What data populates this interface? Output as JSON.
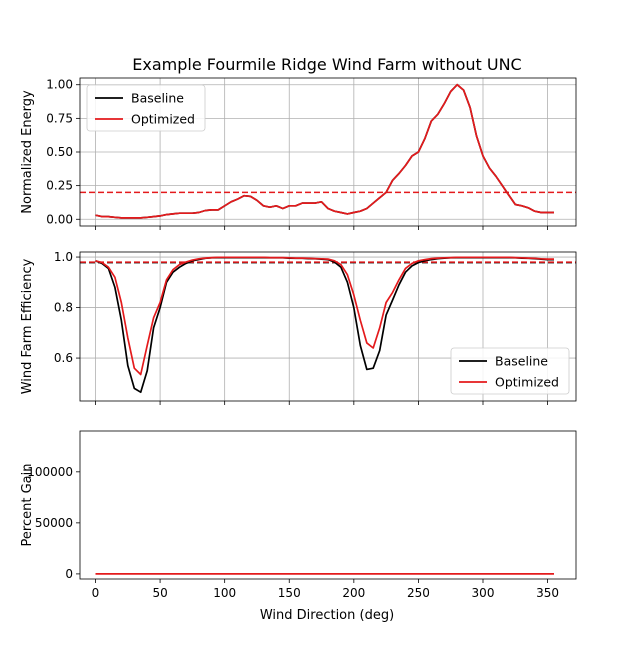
{
  "figure": {
    "title": "Example Fourmile Ridge Wind Farm without UNC",
    "xlabel": "Wind Direction (deg)"
  },
  "chart_data": [
    {
      "type": "line",
      "ylabel": "Normalized Energy",
      "xlim": [
        -12,
        372
      ],
      "ylim": [
        -0.05,
        1.05
      ],
      "xticks": [
        0,
        50,
        100,
        150,
        200,
        250,
        300,
        350
      ],
      "yticks": [
        0.0,
        0.25,
        0.5,
        0.75,
        1.0
      ],
      "ytick_labels": [
        "0.00",
        "0.25",
        "0.50",
        "0.75",
        "1.00"
      ],
      "grid": true,
      "show_xticklabels": false,
      "legend": {
        "position": "top-left",
        "entries": [
          "Baseline",
          "Optimized"
        ]
      },
      "hlines": [
        {
          "y": 0.2,
          "color": "#e41a1c",
          "style": "dashed"
        }
      ],
      "x": [
        0,
        5,
        10,
        15,
        20,
        25,
        30,
        35,
        40,
        45,
        50,
        55,
        60,
        65,
        70,
        75,
        80,
        85,
        90,
        95,
        100,
        105,
        110,
        115,
        120,
        125,
        130,
        135,
        140,
        145,
        150,
        155,
        160,
        165,
        170,
        175,
        180,
        185,
        190,
        195,
        200,
        205,
        210,
        215,
        220,
        225,
        230,
        235,
        240,
        245,
        250,
        255,
        260,
        265,
        270,
        275,
        280,
        285,
        290,
        295,
        300,
        305,
        310,
        315,
        320,
        325,
        330,
        335,
        340,
        345,
        350,
        355
      ],
      "series": [
        {
          "name": "Baseline",
          "color": "#000000",
          "values": [
            0.03,
            0.02,
            0.02,
            0.015,
            0.01,
            0.01,
            0.01,
            0.01,
            0.015,
            0.02,
            0.025,
            0.035,
            0.04,
            0.045,
            0.045,
            0.045,
            0.05,
            0.065,
            0.07,
            0.07,
            0.1,
            0.13,
            0.15,
            0.175,
            0.17,
            0.14,
            0.1,
            0.09,
            0.1,
            0.08,
            0.1,
            0.1,
            0.12,
            0.12,
            0.12,
            0.13,
            0.08,
            0.06,
            0.05,
            0.04,
            0.05,
            0.06,
            0.08,
            0.12,
            0.16,
            0.2,
            0.29,
            0.34,
            0.4,
            0.47,
            0.5,
            0.6,
            0.73,
            0.78,
            0.86,
            0.95,
            1.0,
            0.96,
            0.83,
            0.62,
            0.47,
            0.38,
            0.32,
            0.25,
            0.18,
            0.11,
            0.1,
            0.085,
            0.06,
            0.05,
            0.05,
            0.05
          ]
        },
        {
          "name": "Optimized",
          "color": "#e41a1c",
          "values": [
            0.03,
            0.02,
            0.02,
            0.015,
            0.01,
            0.01,
            0.01,
            0.01,
            0.015,
            0.02,
            0.025,
            0.035,
            0.04,
            0.045,
            0.045,
            0.045,
            0.05,
            0.065,
            0.07,
            0.07,
            0.1,
            0.13,
            0.15,
            0.175,
            0.17,
            0.14,
            0.1,
            0.09,
            0.1,
            0.08,
            0.1,
            0.1,
            0.12,
            0.12,
            0.12,
            0.13,
            0.08,
            0.06,
            0.05,
            0.04,
            0.05,
            0.06,
            0.08,
            0.12,
            0.16,
            0.2,
            0.29,
            0.34,
            0.4,
            0.47,
            0.5,
            0.6,
            0.73,
            0.78,
            0.86,
            0.95,
            1.0,
            0.96,
            0.83,
            0.62,
            0.47,
            0.38,
            0.32,
            0.25,
            0.18,
            0.11,
            0.1,
            0.085,
            0.06,
            0.05,
            0.05,
            0.05
          ]
        }
      ]
    },
    {
      "type": "line",
      "ylabel": "Wind Farm Efficiency",
      "xlim": [
        -12,
        372
      ],
      "ylim": [
        0.43,
        1.02
      ],
      "xticks": [
        0,
        50,
        100,
        150,
        200,
        250,
        300,
        350
      ],
      "yticks": [
        0.6,
        0.8,
        1.0
      ],
      "ytick_labels": [
        "0.6",
        "0.8",
        "1.0"
      ],
      "grid": true,
      "show_xticklabels": false,
      "legend": {
        "position": "bottom-right",
        "entries": [
          "Baseline",
          "Optimized"
        ]
      },
      "hlines": [
        {
          "y": 0.978,
          "color": "#000000",
          "style": "dashed"
        },
        {
          "y": 0.98,
          "color": "#e41a1c",
          "style": "dashed"
        }
      ],
      "x": [
        0,
        5,
        10,
        15,
        20,
        25,
        30,
        35,
        40,
        45,
        50,
        55,
        60,
        65,
        70,
        75,
        80,
        85,
        90,
        95,
        100,
        105,
        110,
        115,
        120,
        125,
        130,
        135,
        140,
        145,
        150,
        155,
        160,
        165,
        170,
        175,
        180,
        185,
        190,
        195,
        200,
        205,
        210,
        215,
        220,
        225,
        230,
        235,
        240,
        245,
        250,
        255,
        260,
        265,
        270,
        275,
        280,
        285,
        290,
        295,
        300,
        305,
        310,
        315,
        320,
        325,
        330,
        335,
        340,
        345,
        350,
        355
      ],
      "series": [
        {
          "name": "Baseline",
          "color": "#000000",
          "values": [
            0.985,
            0.975,
            0.955,
            0.88,
            0.75,
            0.57,
            0.48,
            0.465,
            0.55,
            0.72,
            0.8,
            0.9,
            0.94,
            0.96,
            0.975,
            0.985,
            0.99,
            0.995,
            0.997,
            0.998,
            0.998,
            0.998,
            0.998,
            0.998,
            0.998,
            0.998,
            0.998,
            0.997,
            0.997,
            0.997,
            0.996,
            0.995,
            0.995,
            0.994,
            0.993,
            0.992,
            0.99,
            0.98,
            0.96,
            0.9,
            0.8,
            0.65,
            0.555,
            0.56,
            0.63,
            0.77,
            0.83,
            0.89,
            0.94,
            0.965,
            0.978,
            0.985,
            0.99,
            0.994,
            0.996,
            0.997,
            0.998,
            0.998,
            0.998,
            0.998,
            0.998,
            0.998,
            0.998,
            0.998,
            0.998,
            0.997,
            0.996,
            0.995,
            0.994,
            0.992,
            0.99,
            0.99
          ]
        },
        {
          "name": "Optimized",
          "color": "#e41a1c",
          "values": [
            0.985,
            0.978,
            0.96,
            0.92,
            0.82,
            0.68,
            0.56,
            0.535,
            0.65,
            0.76,
            0.82,
            0.91,
            0.95,
            0.97,
            0.98,
            0.988,
            0.993,
            0.996,
            0.998,
            0.999,
            0.999,
            0.999,
            0.999,
            0.999,
            0.999,
            0.999,
            0.999,
            0.998,
            0.998,
            0.998,
            0.997,
            0.996,
            0.996,
            0.995,
            0.994,
            0.993,
            0.992,
            0.985,
            0.97,
            0.93,
            0.85,
            0.75,
            0.66,
            0.64,
            0.72,
            0.82,
            0.86,
            0.91,
            0.955,
            0.975,
            0.985,
            0.99,
            0.994,
            0.996,
            0.997,
            0.998,
            0.999,
            0.999,
            0.999,
            0.999,
            0.999,
            0.999,
            0.999,
            0.999,
            0.999,
            0.998,
            0.997,
            0.996,
            0.995,
            0.993,
            0.992,
            0.992
          ]
        }
      ]
    },
    {
      "type": "line",
      "ylabel": "Percent Gain",
      "xlim": [
        -12,
        372
      ],
      "ylim": [
        -5000,
        140000
      ],
      "xticks": [
        0,
        50,
        100,
        150,
        200,
        250,
        300,
        350
      ],
      "xtick_labels": [
        "0",
        "50",
        "100",
        "150",
        "200",
        "250",
        "300",
        "350"
      ],
      "yticks": [
        0,
        50000,
        100000
      ],
      "ytick_labels": [
        "0",
        "50000",
        "100000"
      ],
      "grid": false,
      "show_xticklabels": true,
      "series": [
        {
          "name": "",
          "color": "#e41a1c",
          "x": [
            0,
            355
          ],
          "values": [
            0,
            0
          ]
        }
      ]
    }
  ]
}
